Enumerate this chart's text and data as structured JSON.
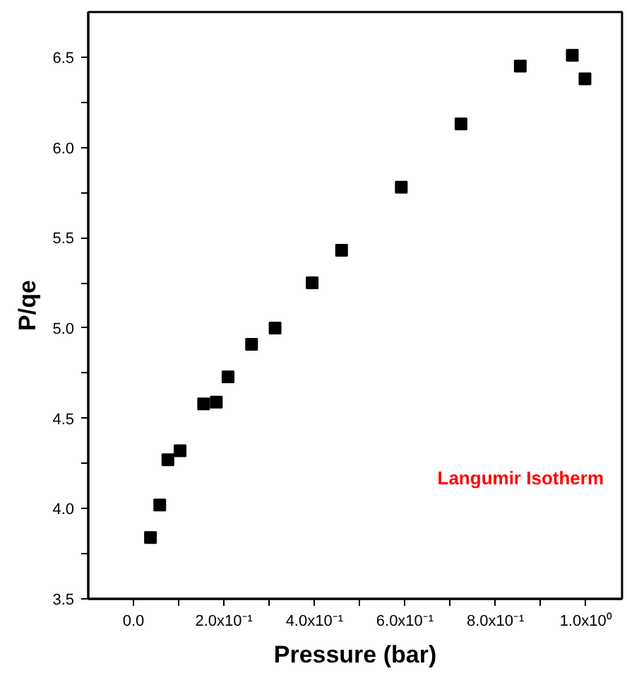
{
  "chart_data": {
    "type": "scatter",
    "xlabel": "Pressure (bar)",
    "ylabel": "P/qe",
    "x": [
      0.0375,
      0.058,
      0.076,
      0.103,
      0.155,
      0.183,
      0.209,
      0.261,
      0.313,
      0.395,
      0.46,
      0.592,
      0.724,
      0.855,
      0.97,
      0.998
    ],
    "series": [
      {
        "color": "#000000",
        "values": [
          3.84,
          4.02,
          4.27,
          4.32,
          4.58,
          4.59,
          4.73,
          4.91,
          5.0,
          5.25,
          5.43,
          5.78,
          6.13,
          6.45,
          6.51,
          6.38
        ]
      }
    ],
    "xlim": [
      -0.1,
      1.08
    ],
    "ylim": [
      3.5,
      6.75
    ],
    "xticks": [
      {
        "value": 0.0,
        "label": "0.0"
      },
      {
        "value": 0.1,
        "label": null
      },
      {
        "value": 0.2,
        "label": "2.0x10⁻¹"
      },
      {
        "value": 0.3,
        "label": null
      },
      {
        "value": 0.4,
        "label": "4.0x10⁻¹"
      },
      {
        "value": 0.5,
        "label": null
      },
      {
        "value": 0.6,
        "label": "6.0x10⁻¹"
      },
      {
        "value": 0.7,
        "label": null
      },
      {
        "value": 0.8,
        "label": "8.0x10⁻¹"
      },
      {
        "value": 0.9,
        "label": null
      },
      {
        "value": 1.0,
        "label": "1.0x10⁰"
      }
    ],
    "yticks": [
      {
        "value": 3.5,
        "label": "3.5"
      },
      {
        "value": 3.75,
        "label": null
      },
      {
        "value": 4.0,
        "label": "4.0"
      },
      {
        "value": 4.25,
        "label": null
      },
      {
        "value": 4.5,
        "label": "4.5"
      },
      {
        "value": 4.75,
        "label": null
      },
      {
        "value": 5.0,
        "label": "5.0"
      },
      {
        "value": 5.25,
        "label": null
      },
      {
        "value": 5.5,
        "label": "5.5"
      },
      {
        "value": 5.75,
        "label": null
      },
      {
        "value": 6.0,
        "label": "6.0"
      },
      {
        "value": 6.25,
        "label": null
      },
      {
        "value": 6.5,
        "label": "6.5"
      }
    ],
    "annotations": [
      "Langumir Isotherm"
    ],
    "marker": "square",
    "grid": false
  }
}
